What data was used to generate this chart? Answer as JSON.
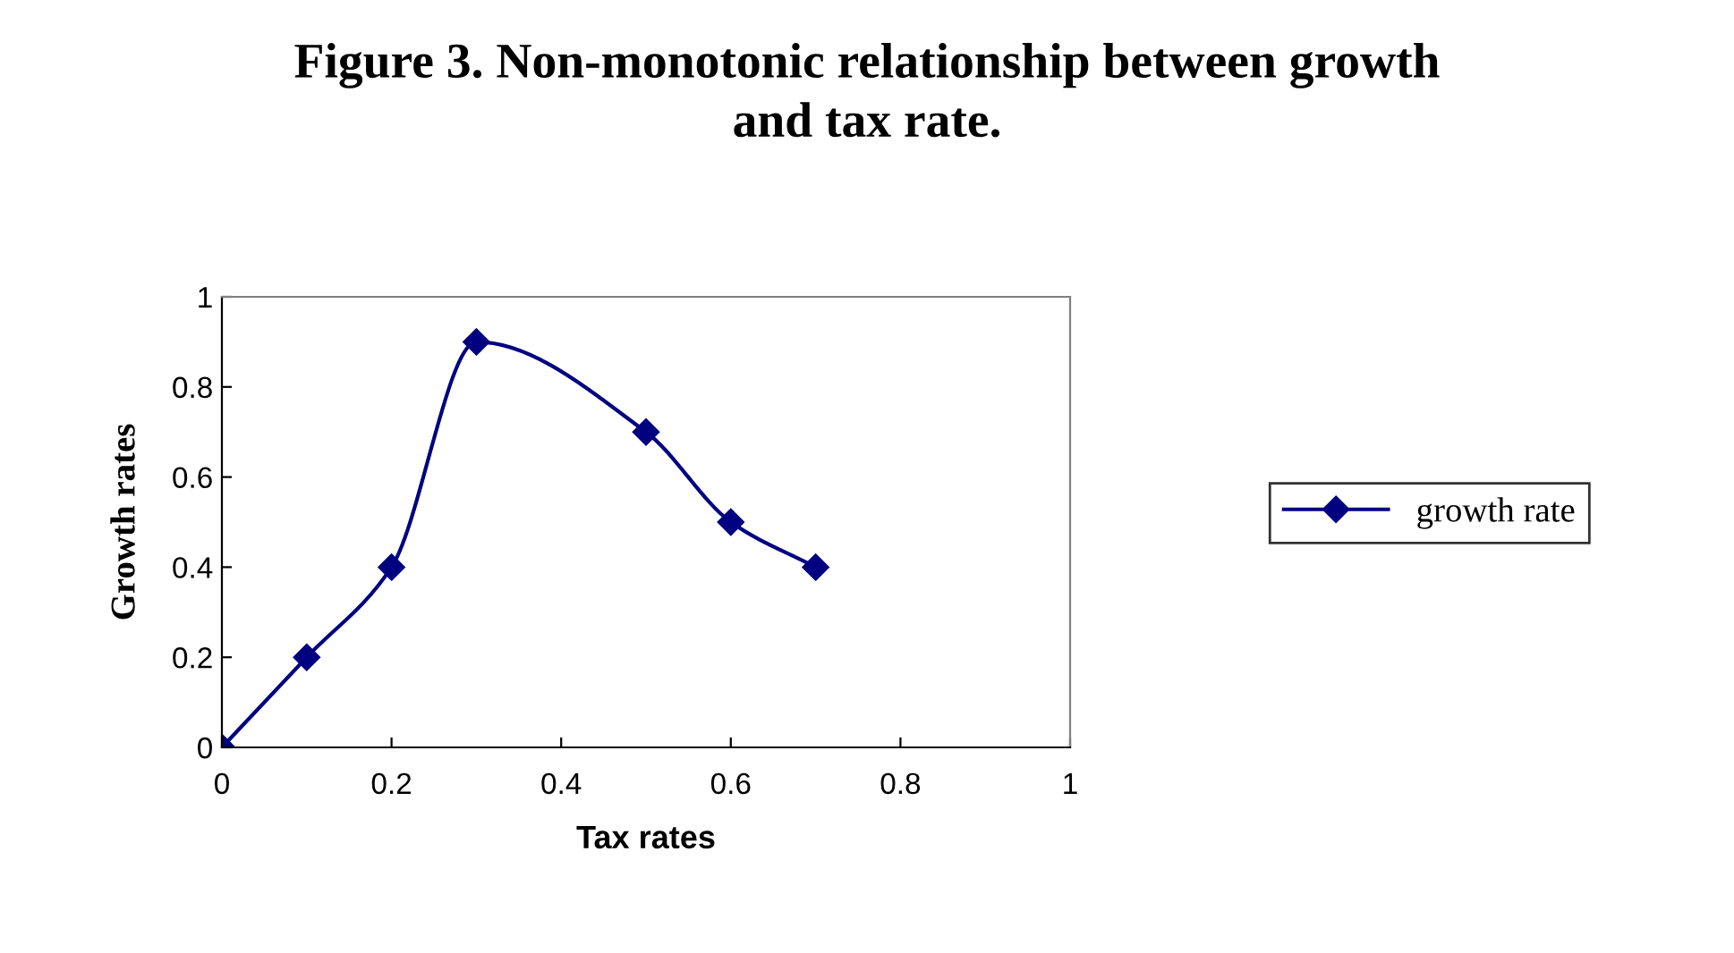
{
  "chart_data": {
    "type": "line",
    "title": "Figure 3. Non-monotonic relationship between growth\nand tax rate.",
    "xlabel": "Tax rates",
    "ylabel": "Growth rates",
    "x": [
      0,
      0.1,
      0.2,
      0.3,
      0.5,
      0.6,
      0.7
    ],
    "series": [
      {
        "name": "growth rate",
        "color": "#000080",
        "values": [
          0,
          0.2,
          0.4,
          0.9,
          0.7,
          0.5,
          0.4
        ]
      }
    ],
    "xlim": [
      0,
      1
    ],
    "xticks": [
      0,
      0.2,
      0.4,
      0.6,
      0.8,
      1
    ],
    "ylim": [
      0,
      1
    ],
    "yticks": [
      0,
      0.2,
      0.4,
      0.6,
      0.8,
      1
    ],
    "grid": false,
    "legend": "right",
    "marker": "diamond",
    "line_style": "solid"
  }
}
